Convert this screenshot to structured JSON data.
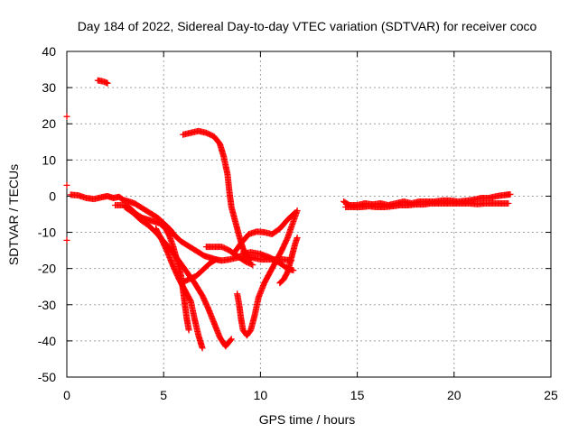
{
  "chart_data": {
    "type": "scatter",
    "title": "Day 184 of 2022, Sidereal Day-to-day VTEC variation (SDTVAR) for receiver coco",
    "xlabel": "GPS time / hours",
    "ylabel": "SDTVAR / TECUs",
    "xlim": [
      0,
      25
    ],
    "ylim": [
      -50,
      40
    ],
    "xticks": [
      "0",
      "5",
      "10",
      "15",
      "20",
      "25"
    ],
    "yticks": [
      "-50",
      "-40",
      "-30",
      "-20",
      "-10",
      "0",
      "10",
      "20",
      "30",
      "40"
    ],
    "grid": true,
    "series": [
      {
        "name": "SDTVAR",
        "color": "#ff0000",
        "marker": "+",
        "segments": [
          [
            [
              0.2,
              0.4
            ],
            [
              0.6,
              0.2
            ],
            [
              1.0,
              -0.5
            ],
            [
              1.4,
              -0.8
            ],
            [
              1.8,
              -0.3
            ],
            [
              2.1,
              0.0
            ],
            [
              2.4,
              -0.5
            ],
            [
              2.7,
              -0.2
            ],
            [
              2.9,
              -1.0
            ],
            [
              3.2,
              -1.5
            ],
            [
              3.5,
              -2.0
            ],
            [
              3.8,
              -3.0
            ],
            [
              4.1,
              -4.0
            ],
            [
              4.4,
              -5.0
            ],
            [
              4.7,
              -6.0
            ],
            [
              5.0,
              -7.5
            ],
            [
              5.3,
              -9.0
            ],
            [
              5.6,
              -11.0
            ],
            [
              5.9,
              -12.5
            ],
            [
              6.2,
              -13.5
            ],
            [
              6.5,
              -14.5
            ],
            [
              6.8,
              -15.5
            ],
            [
              7.1,
              -16.5
            ],
            [
              7.4,
              -17.0
            ],
            [
              7.7,
              -17.5
            ],
            [
              8.0,
              -17.8
            ],
            [
              8.4,
              -17.5
            ],
            [
              8.8,
              -17.0
            ],
            [
              9.2,
              -16.8
            ],
            [
              9.6,
              -17.0
            ],
            [
              10.0,
              -17.5
            ],
            [
              10.4,
              -17.5
            ],
            [
              10.8,
              -17.5
            ],
            [
              11.2,
              -17.5
            ],
            [
              11.6,
              -17.8
            ]
          ],
          [
            [
              0.0,
              -12.2
            ]
          ],
          [
            [
              0.0,
              22.0
            ]
          ],
          [
            [
              0.0,
              3.0
            ]
          ],
          [
            [
              1.6,
              32.0
            ],
            [
              1.8,
              31.8
            ],
            [
              2.0,
              31.5
            ],
            [
              2.1,
              31.2
            ]
          ],
          [
            [
              2.5,
              -2.5
            ],
            [
              3.0,
              -2.5
            ],
            [
              3.3,
              -3.5
            ],
            [
              3.6,
              -5.0
            ],
            [
              3.9,
              -6.0
            ],
            [
              4.2,
              -6.5
            ],
            [
              4.5,
              -7.0
            ],
            [
              4.8,
              -7.5
            ],
            [
              5.1,
              -9.0
            ],
            [
              5.3,
              -11.0
            ],
            [
              5.5,
              -14.0
            ],
            [
              5.7,
              -18.0
            ],
            [
              5.9,
              -22.0
            ],
            [
              6.0,
              -26.0
            ],
            [
              6.1,
              -30.0
            ],
            [
              6.2,
              -34.0
            ],
            [
              6.3,
              -37.0
            ]
          ],
          [
            [
              4.6,
              -9.0
            ],
            [
              4.9,
              -12.0
            ],
            [
              5.2,
              -15.5
            ],
            [
              5.5,
              -19.5
            ],
            [
              5.8,
              -23.0
            ],
            [
              6.1,
              -26.0
            ],
            [
              6.4,
              -29.0
            ],
            [
              6.6,
              -34.0
            ],
            [
              6.8,
              -38.5
            ],
            [
              7.0,
              -42.0
            ]
          ],
          [
            [
              3.0,
              -3.0
            ],
            [
              3.4,
              -4.5
            ],
            [
              3.8,
              -6.5
            ],
            [
              4.2,
              -8.0
            ],
            [
              4.6,
              -10.0
            ],
            [
              5.0,
              -12.5
            ],
            [
              5.4,
              -15.0
            ],
            [
              5.8,
              -18.0
            ],
            [
              6.2,
              -21.0
            ],
            [
              6.6,
              -24.0
            ],
            [
              7.0,
              -27.5
            ],
            [
              7.3,
              -31.0
            ],
            [
              7.6,
              -35.0
            ],
            [
              7.9,
              -39.0
            ],
            [
              8.2,
              -41.5
            ],
            [
              8.5,
              -39.5
            ]
          ],
          [
            [
              5.9,
              -24.0
            ],
            [
              6.3,
              -23.0
            ],
            [
              6.7,
              -22.0
            ],
            [
              7.1,
              -20.0
            ],
            [
              7.4,
              -18.5
            ],
            [
              7.7,
              -17.5
            ]
          ],
          [
            [
              6.0,
              17.0
            ],
            [
              6.4,
              17.5
            ],
            [
              6.8,
              18.0
            ],
            [
              7.2,
              17.5
            ],
            [
              7.6,
              16.5
            ],
            [
              7.9,
              14.5
            ],
            [
              8.1,
              11.0
            ],
            [
              8.3,
              6.0
            ],
            [
              8.4,
              1.0
            ],
            [
              8.5,
              -3.0
            ],
            [
              8.7,
              -7.0
            ],
            [
              8.9,
              -11.0
            ],
            [
              9.1,
              -14.5
            ],
            [
              9.3,
              -16.5
            ],
            [
              9.5,
              -17.5
            ]
          ],
          [
            [
              7.2,
              -14.0
            ],
            [
              7.6,
              -14.0
            ],
            [
              8.0,
              -14.0
            ],
            [
              8.4,
              -15.0
            ],
            [
              8.8,
              -16.5
            ],
            [
              9.2,
              -18.0
            ],
            [
              9.6,
              -19.0
            ]
          ],
          [
            [
              8.8,
              -27.0
            ],
            [
              8.9,
              -30.0
            ],
            [
              9.0,
              -34.0
            ],
            [
              9.1,
              -37.0
            ],
            [
              9.3,
              -38.5
            ],
            [
              9.5,
              -37.0
            ],
            [
              9.7,
              -33.0
            ],
            [
              9.9,
              -28.0
            ],
            [
              10.2,
              -24.0
            ],
            [
              10.5,
              -21.0
            ],
            [
              10.8,
              -18.0
            ],
            [
              11.1,
              -15.0
            ],
            [
              11.4,
              -11.5
            ],
            [
              11.7,
              -7.0
            ],
            [
              11.9,
              -4.0
            ]
          ],
          [
            [
              8.6,
              -16.0
            ],
            [
              9.0,
              -13.0
            ],
            [
              9.4,
              -10.5
            ],
            [
              9.8,
              -9.8
            ],
            [
              10.2,
              -10.0
            ],
            [
              10.6,
              -10.5
            ],
            [
              11.0,
              -9.0
            ],
            [
              11.4,
              -6.5
            ],
            [
              11.8,
              -4.5
            ]
          ],
          [
            [
              9.0,
              -16.0
            ],
            [
              9.5,
              -15.5
            ],
            [
              10.0,
              -16.0
            ],
            [
              10.5,
              -17.0
            ],
            [
              11.0,
              -18.5
            ],
            [
              11.4,
              -20.0
            ],
            [
              11.7,
              -20.5
            ]
          ],
          [
            [
              11.0,
              -24.0
            ],
            [
              11.2,
              -23.0
            ],
            [
              11.4,
              -21.0
            ],
            [
              11.6,
              -17.0
            ],
            [
              11.8,
              -13.0
            ],
            [
              11.9,
              -11.5
            ]
          ],
          [
            [
              14.3,
              -1.5
            ],
            [
              14.6,
              -2.5
            ],
            [
              15.0,
              -2.5
            ],
            [
              15.4,
              -2.0
            ],
            [
              15.8,
              -2.3
            ],
            [
              16.2,
              -2.0
            ],
            [
              16.6,
              -2.5
            ],
            [
              17.0,
              -2.0
            ],
            [
              17.4,
              -1.5
            ],
            [
              17.8,
              -2.0
            ],
            [
              18.2,
              -1.5
            ],
            [
              18.6,
              -1.5
            ],
            [
              19.0,
              -1.5
            ],
            [
              19.4,
              -1.2
            ],
            [
              19.8,
              -1.2
            ],
            [
              20.2,
              -1.5
            ],
            [
              20.6,
              -1.3
            ],
            [
              21.0,
              -1.0
            ],
            [
              21.4,
              -0.5
            ],
            [
              21.8,
              -0.5
            ],
            [
              22.2,
              0.0
            ],
            [
              22.6,
              0.3
            ],
            [
              22.9,
              0.5
            ]
          ],
          [
            [
              14.4,
              -3.0
            ],
            [
              14.8,
              -3.0
            ],
            [
              15.2,
              -3.0
            ],
            [
              15.6,
              -2.8
            ],
            [
              16.0,
              -3.0
            ],
            [
              16.4,
              -3.0
            ],
            [
              16.8,
              -2.8
            ],
            [
              17.2,
              -2.5
            ],
            [
              17.6,
              -2.5
            ],
            [
              18.0,
              -2.3
            ],
            [
              18.4,
              -2.3
            ],
            [
              18.8,
              -2.0
            ],
            [
              19.2,
              -2.0
            ],
            [
              19.6,
              -2.0
            ],
            [
              20.0,
              -2.0
            ],
            [
              20.4,
              -2.0
            ],
            [
              20.8,
              -2.0
            ],
            [
              21.2,
              -2.2
            ],
            [
              21.6,
              -2.0
            ],
            [
              22.0,
              -2.0
            ],
            [
              22.4,
              -2.0
            ],
            [
              22.8,
              -2.0
            ]
          ]
        ]
      }
    ]
  }
}
